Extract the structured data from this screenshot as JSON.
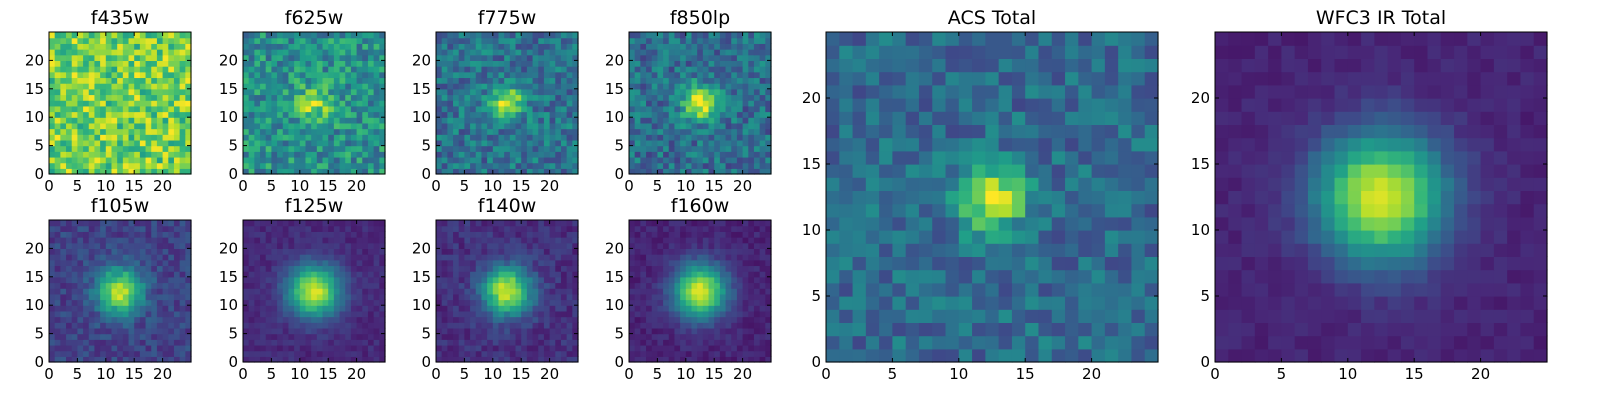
{
  "chart_data": [
    {
      "type": "heatmap",
      "title": "f435w",
      "xticks": [
        "0",
        "5",
        "10",
        "15",
        "20"
      ],
      "yticks": [
        "0",
        "5",
        "10",
        "15",
        "20"
      ],
      "xlim": [
        0,
        25
      ],
      "ylim": [
        0,
        25
      ],
      "center": [
        12.5,
        12.5
      ],
      "peak_width": 3.5,
      "peak_amplitude": 0.0,
      "background_level": 0.78,
      "noise": 0.22,
      "colormap": "viridis",
      "grid": false
    },
    {
      "type": "heatmap",
      "title": "f625w",
      "xticks": [
        "0",
        "5",
        "10",
        "15",
        "20"
      ],
      "yticks": [
        "0",
        "5",
        "10",
        "15",
        "20"
      ],
      "xlim": [
        0,
        25
      ],
      "ylim": [
        0,
        25
      ],
      "center": [
        12.5,
        12.5
      ],
      "peak_width": 2.2,
      "peak_amplitude": 0.35,
      "background_level": 0.5,
      "noise": 0.2,
      "colormap": "viridis",
      "grid": false
    },
    {
      "type": "heatmap",
      "title": "f775w",
      "xticks": [
        "0",
        "5",
        "10",
        "15",
        "20"
      ],
      "yticks": [
        "0",
        "5",
        "10",
        "15",
        "20"
      ],
      "xlim": [
        0,
        25
      ],
      "ylim": [
        0,
        25
      ],
      "center": [
        12.5,
        12.5
      ],
      "peak_width": 2.0,
      "peak_amplitude": 0.6,
      "background_level": 0.38,
      "noise": 0.17,
      "colormap": "viridis",
      "grid": false
    },
    {
      "type": "heatmap",
      "title": "f850lp",
      "xticks": [
        "0",
        "5",
        "10",
        "15",
        "20"
      ],
      "yticks": [
        "0",
        "5",
        "10",
        "15",
        "20"
      ],
      "xlim": [
        0,
        25
      ],
      "ylim": [
        0,
        25
      ],
      "center": [
        12.5,
        12.5
      ],
      "peak_width": 2.1,
      "peak_amplitude": 0.65,
      "background_level": 0.36,
      "noise": 0.17,
      "colormap": "viridis",
      "grid": false
    },
    {
      "type": "heatmap",
      "title": "f105w",
      "xticks": [
        "0",
        "5",
        "10",
        "15",
        "20"
      ],
      "yticks": [
        "0",
        "5",
        "10",
        "15",
        "20"
      ],
      "xlim": [
        0,
        25
      ],
      "ylim": [
        0,
        25
      ],
      "center": [
        12.5,
        12.5
      ],
      "peak_width": 2.8,
      "peak_amplitude": 0.72,
      "background_level": 0.2,
      "noise": 0.09,
      "colormap": "viridis",
      "grid": false
    },
    {
      "type": "heatmap",
      "title": "f125w",
      "xticks": [
        "0",
        "5",
        "10",
        "15",
        "20"
      ],
      "yticks": [
        "0",
        "5",
        "10",
        "15",
        "20"
      ],
      "xlim": [
        0,
        25
      ],
      "ylim": [
        0,
        25
      ],
      "center": [
        12.5,
        12.5
      ],
      "peak_width": 3.2,
      "peak_amplitude": 0.82,
      "background_level": 0.12,
      "noise": 0.05,
      "colormap": "viridis",
      "grid": false
    },
    {
      "type": "heatmap",
      "title": "f140w",
      "xticks": [
        "0",
        "5",
        "10",
        "15",
        "20"
      ],
      "yticks": [
        "0",
        "5",
        "10",
        "15",
        "20"
      ],
      "xlim": [
        0,
        25
      ],
      "ylim": [
        0,
        25
      ],
      "center": [
        12.5,
        12.5
      ],
      "peak_width": 3.0,
      "peak_amplitude": 0.8,
      "background_level": 0.14,
      "noise": 0.07,
      "colormap": "viridis",
      "grid": false
    },
    {
      "type": "heatmap",
      "title": "f160w",
      "xticks": [
        "0",
        "5",
        "10",
        "15",
        "20"
      ],
      "yticks": [
        "0",
        "5",
        "10",
        "15",
        "20"
      ],
      "xlim": [
        0,
        25
      ],
      "ylim": [
        0,
        25
      ],
      "center": [
        12.5,
        12.5
      ],
      "peak_width": 3.3,
      "peak_amplitude": 0.85,
      "background_level": 0.1,
      "noise": 0.05,
      "colormap": "viridis",
      "grid": false
    },
    {
      "type": "heatmap",
      "title": "ACS Total",
      "xticks": [
        "0",
        "5",
        "10",
        "15",
        "20"
      ],
      "yticks": [
        "0",
        "5",
        "10",
        "15",
        "20"
      ],
      "xlim": [
        0,
        25
      ],
      "ylim": [
        0,
        25
      ],
      "center": [
        12.5,
        12.5
      ],
      "peak_width": 1.8,
      "peak_amplitude": 0.6,
      "background_level": 0.35,
      "noise": 0.14,
      "colormap": "viridis",
      "grid": false
    },
    {
      "type": "heatmap",
      "title": "WFC3 IR Total",
      "xticks": [
        "0",
        "5",
        "10",
        "15",
        "20"
      ],
      "yticks": [
        "0",
        "5",
        "10",
        "15",
        "20"
      ],
      "xlim": [
        0,
        25
      ],
      "ylim": [
        0,
        25
      ],
      "center": [
        12.5,
        12.5
      ],
      "peak_width": 3.4,
      "peak_amplitude": 0.86,
      "background_level": 0.1,
      "noise": 0.035,
      "colormap": "viridis",
      "grid": false
    }
  ]
}
